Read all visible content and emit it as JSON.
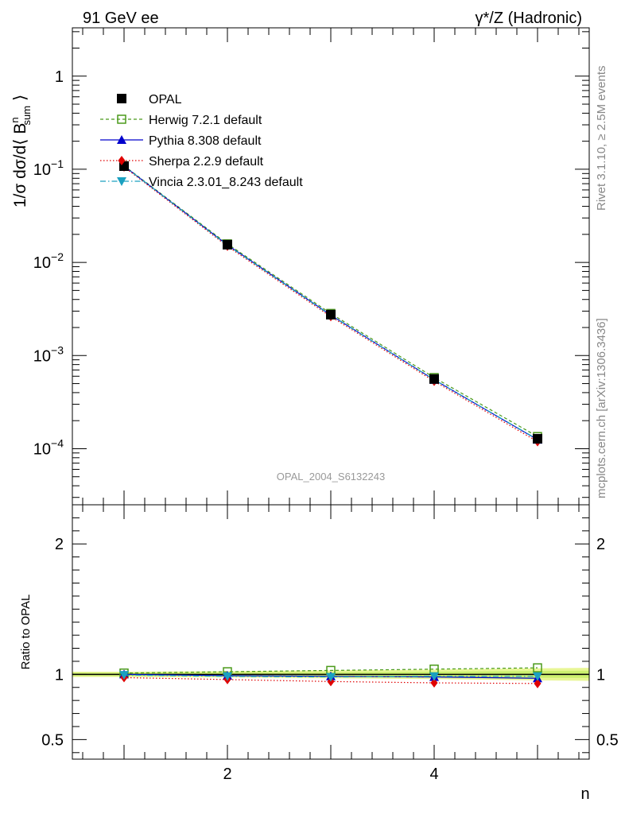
{
  "header": {
    "left": "91 GeV ee",
    "right": "γ*/Z (Hadronic)"
  },
  "side_labels": {
    "rivet": "Rivet 3.1.10, ≥ 2.5M events",
    "mcplots": "mcplots.cern.ch [arXiv:1306.3436]"
  },
  "analysis_id": "OPAL_2004_S6132243",
  "chart_data": [
    {
      "type": "line",
      "name": "main",
      "ylabel": "1/σ dσ/d⟨ B^n_sum ⟩",
      "yscale": "log",
      "xlim": [
        0.5,
        5.5
      ],
      "ylim": [
        2.5e-05,
        3.3
      ],
      "y_ticks": [
        {
          "value": 1,
          "label": "1"
        },
        {
          "value": 0.1,
          "label": "10^-1"
        },
        {
          "value": 0.01,
          "label": "10^-2"
        },
        {
          "value": 0.001,
          "label": "10^-3"
        },
        {
          "value": 0.0001,
          "label": "10^-4"
        }
      ],
      "x": [
        1,
        2,
        3,
        4,
        5
      ],
      "series": [
        {
          "name": "OPAL",
          "marker": "square-filled",
          "color": "#000000",
          "dash": "none",
          "values": [
            0.108,
            0.0155,
            0.00275,
            0.00056,
            0.000128
          ]
        },
        {
          "name": "Herwig 7.2.1 default",
          "marker": "square-open",
          "color": "#4a9a1a",
          "dash": "4,3",
          "values": [
            0.109,
            0.0158,
            0.00283,
            0.00058,
            0.000135
          ]
        },
        {
          "name": "Pythia 8.308 default",
          "marker": "triangle-up",
          "color": "#0000cc",
          "dash": "none",
          "values": [
            0.108,
            0.0154,
            0.00272,
            0.00055,
            0.000125
          ]
        },
        {
          "name": "Sherpa 2.2.9 default",
          "marker": "diamond",
          "color": "#e00000",
          "dash": "1.5,2.5",
          "values": [
            0.106,
            0.0149,
            0.00262,
            0.00053,
            0.000119
          ]
        },
        {
          "name": "Vincia 2.3.01_8.243 default",
          "marker": "triangle-down",
          "color": "#1aa0c0",
          "dash": "7,3,1.5,3",
          "values": [
            0.108,
            0.0153,
            0.0027,
            0.00055,
            0.000126
          ]
        }
      ]
    },
    {
      "type": "line",
      "name": "ratio",
      "ylabel": "Ratio to OPAL",
      "xlabel": "n",
      "xlim": [
        0.5,
        5.5
      ],
      "ylim": [
        0.35,
        2.3
      ],
      "x_ticks": [
        {
          "value": 2,
          "label": "2"
        },
        {
          "value": 4,
          "label": "4"
        }
      ],
      "y_ticks": [
        {
          "value": 0.5,
          "label": "0.5"
        },
        {
          "value": 1,
          "label": "1"
        },
        {
          "value": 2,
          "label": "2"
        }
      ],
      "band": {
        "x": [
          0.5,
          1,
          2,
          3,
          4,
          5,
          5.5
        ],
        "inner": [
          0.012,
          0.012,
          0.014,
          0.016,
          0.02,
          0.026,
          0.028
        ],
        "outer": [
          0.02,
          0.02,
          0.024,
          0.03,
          0.036,
          0.046,
          0.05
        ]
      },
      "x": [
        1,
        2,
        3,
        4,
        5
      ],
      "series": [
        {
          "name": "Herwig 7.2.1 default",
          "values": [
            1.01,
            1.02,
            1.03,
            1.04,
            1.05
          ]
        },
        {
          "name": "Pythia 8.308 default",
          "values": [
            1.0,
            0.99,
            0.985,
            0.98,
            0.97
          ]
        },
        {
          "name": "Sherpa 2.2.9 default",
          "values": [
            0.975,
            0.96,
            0.945,
            0.935,
            0.93
          ]
        },
        {
          "name": "Vincia 2.3.01_8.243 default",
          "values": [
            0.995,
            0.985,
            0.98,
            0.985,
            0.985
          ]
        }
      ]
    }
  ]
}
